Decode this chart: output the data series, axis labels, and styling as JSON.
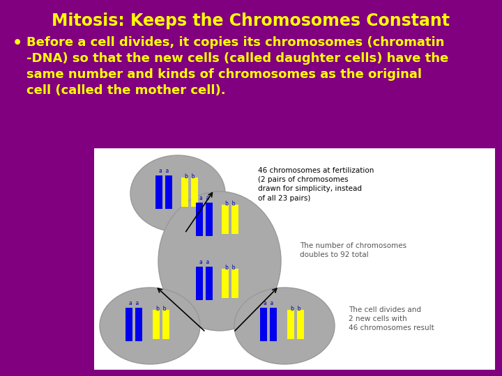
{
  "title": "Mitosis: Keeps the Chromosomes Constant",
  "title_color": "#FFFF00",
  "title_fontsize": 17,
  "bg_color": "#800080",
  "bullet_text": "Before a cell divides, it copies its chromosomes (chromatin\n-DNA) so that the new cells (called daughter cells) have the\nsame number and kinds of chromosomes as the original\ncell (called the mother cell).",
  "bullet_color": "#FFFF00",
  "bullet_fontsize": 13,
  "diagram_bg": "#FFFFFF",
  "cell_color": "#AAAAAA",
  "cell_edge": "#999999",
  "blue_chr": "#0000EE",
  "yellow_chr": "#FFFF00",
  "label_color": "#0000BB",
  "ann1_text": "46 chromosomes at fertilization\n(2 pairs of chromosomes\ndrawn for simplicity, instead\nof all 23 pairs)",
  "ann2_text": "The number of chromosomes\ndoubles to 92 total",
  "ann3_text": "The cell divides and\n2 new cells with\n46 chromosomes result",
  "ann_fontsize": 7.5
}
